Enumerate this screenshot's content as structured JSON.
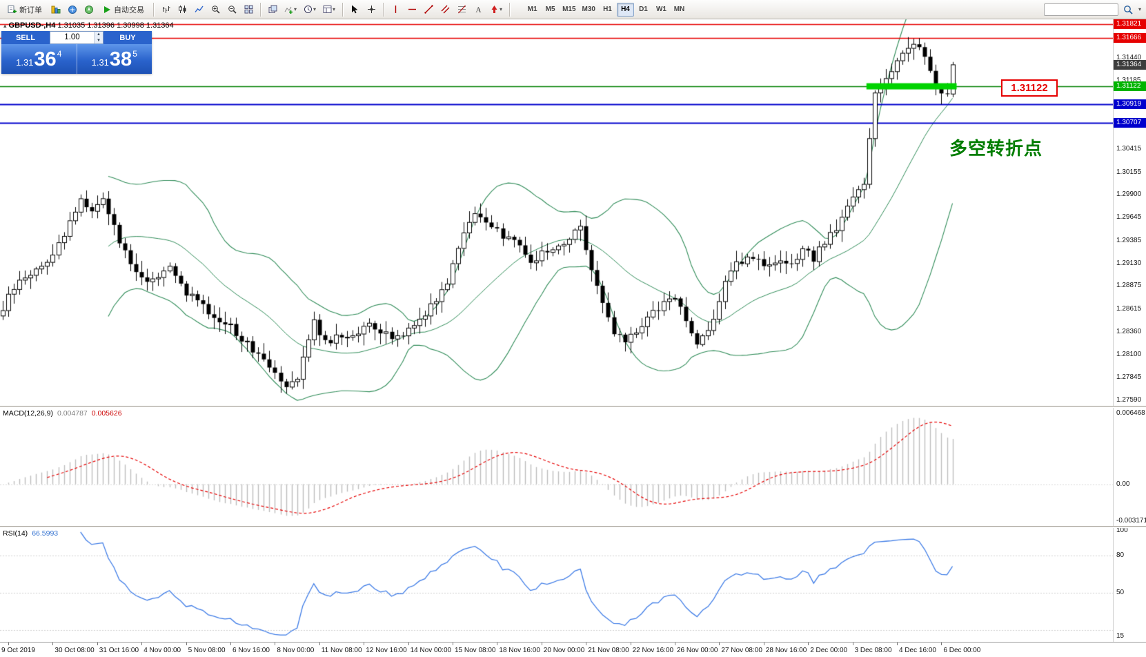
{
  "toolbar": {
    "new_order_label": "新订单",
    "autotrade_label": "自动交易",
    "timeframes": [
      "M1",
      "M5",
      "M15",
      "M30",
      "H1",
      "H4",
      "D1",
      "W1",
      "MN"
    ],
    "active_timeframe": "H4",
    "search_value": ""
  },
  "trade_panel": {
    "sell_label": "SELL",
    "buy_label": "BUY",
    "volume": "1.00",
    "sell_price": {
      "base": "1.31",
      "pips": "36",
      "sup": "4"
    },
    "buy_price": {
      "base": "1.31",
      "pips": "38",
      "sup": "5"
    }
  },
  "chart": {
    "title": "GBPUSD-,H4",
    "ohlc_text": "1.31035 1.31396 1.30998 1.31364",
    "annotation_text": "多空转折点",
    "level_label_text": "1.31122"
  },
  "chart_data": {
    "type": "candlestick",
    "symbol": "GBPUSD-",
    "timeframe": "H4",
    "current_bar": {
      "open": 1.31035,
      "high": 1.31396,
      "low": 1.30998,
      "close": 1.31364
    },
    "num_bars": 172,
    "bar_spacing_px": 8.05,
    "price_axis": {
      "max": 1.31821,
      "min": 1.2759,
      "plain_labels": [
        "1.31440",
        "1.31185",
        "1.30415",
        "1.30155",
        "1.29900",
        "1.29645",
        "1.29385",
        "1.29130",
        "1.28875",
        "1.28615",
        "1.28360",
        "1.28100",
        "1.27845",
        "1.27590"
      ]
    },
    "levels": [
      {
        "price": 1.31821,
        "line_color": "#e60000",
        "line_width": 1.6,
        "badge_color": "#e60000",
        "label": "1.31821"
      },
      {
        "price": 1.31666,
        "line_color": "#e60000",
        "line_width": 1.6,
        "badge_color": "#e60000",
        "label": "1.31666"
      },
      {
        "price": 1.31364,
        "line_color": null,
        "line_width": 0,
        "badge_color": "#3d3d3d",
        "label": "1.31364"
      },
      {
        "price": 1.31122,
        "line_color": "#008000",
        "line_width": 1.5,
        "badge_color": "#00b400",
        "label": "1.31122"
      },
      {
        "price": 1.30919,
        "line_color": "#0000cd",
        "line_width": 1.8,
        "badge_color": "#0000cd",
        "label": "1.30919"
      },
      {
        "price": 1.30707,
        "line_color": "#0000cd",
        "line_width": 1.8,
        "badge_color": "#0000cd",
        "label": "1.30707"
      }
    ],
    "highlight_segment": {
      "price": 1.31122,
      "from_bar": 156,
      "to_bar": 171,
      "color": "#00d300",
      "thickness": 9
    },
    "bollinger": {
      "period": 20,
      "deviation": 2,
      "color": "#2e8b57"
    },
    "candle_colors": {
      "up_fill": "#ffffff",
      "down_fill": "#000000",
      "outline": "#000000"
    },
    "close_path_anchors": [
      [
        0,
        1.2862
      ],
      [
        2,
        1.2886
      ],
      [
        5,
        1.2902
      ],
      [
        8,
        1.2914
      ],
      [
        11,
        1.2946
      ],
      [
        14,
        1.2986
      ],
      [
        16,
        1.2972
      ],
      [
        18,
        1.2988
      ],
      [
        20,
        1.2952
      ],
      [
        24,
        1.2901
      ],
      [
        27,
        1.2893
      ],
      [
        30,
        1.2907
      ],
      [
        33,
        1.2881
      ],
      [
        36,
        1.2863
      ],
      [
        38,
        1.2853
      ],
      [
        41,
        1.2843
      ],
      [
        43,
        1.2827
      ],
      [
        47,
        1.2807
      ],
      [
        51,
        1.2777
      ],
      [
        53,
        1.2787
      ],
      [
        56,
        1.2847
      ],
      [
        58,
        1.2825
      ],
      [
        62,
        1.2832
      ],
      [
        66,
        1.2842
      ],
      [
        70,
        1.2829
      ],
      [
        73,
        1.2839
      ],
      [
        76,
        1.2857
      ],
      [
        80,
        1.2892
      ],
      [
        83,
        1.2951
      ],
      [
        85,
        1.2969
      ],
      [
        88,
        1.2951
      ],
      [
        92,
        1.2939
      ],
      [
        95,
        1.2917
      ],
      [
        98,
        1.2926
      ],
      [
        100,
        1.2932
      ],
      [
        102,
        1.2941
      ],
      [
        104,
        1.2957
      ],
      [
        106,
        1.2907
      ],
      [
        108,
        1.2867
      ],
      [
        110,
        1.2832
      ],
      [
        112,
        1.2826
      ],
      [
        115,
        1.2844
      ],
      [
        117,
        1.2857
      ],
      [
        119,
        1.2867
      ],
      [
        121,
        1.2877
      ],
      [
        123,
        1.2847
      ],
      [
        125,
        1.2821
      ],
      [
        128,
        1.2852
      ],
      [
        130,
        1.2889
      ],
      [
        132,
        1.2912
      ],
      [
        135,
        1.2922
      ],
      [
        138,
        1.2907
      ],
      [
        140,
        1.2913
      ],
      [
        142,
        1.2909
      ],
      [
        144,
        1.2927
      ],
      [
        146,
        1.2919
      ],
      [
        148,
        1.2937
      ],
      [
        151,
        1.2962
      ],
      [
        153,
        1.2987
      ],
      [
        155,
        1.3003
      ],
      [
        157,
        1.3106
      ],
      [
        159,
        1.3123
      ],
      [
        160,
        1.3132
      ],
      [
        162,
        1.3149
      ],
      [
        164,
        1.316
      ],
      [
        165,
        1.3158
      ],
      [
        166,
        1.3149
      ],
      [
        167,
        1.3126
      ],
      [
        168,
        1.3111
      ],
      [
        169,
        1.3101
      ],
      [
        170,
        1.31035
      ],
      [
        171,
        1.31364
      ]
    ],
    "macd": {
      "label": "MACD(12,26,9)",
      "value_main": "0.004787",
      "value_signal": "0.005626",
      "hist_color": "#bdbdbd",
      "signal_color": "#e60000",
      "scale_labels": {
        "max": "0.006468",
        "zero": "0.00",
        "min": "-0.003171"
      }
    },
    "rsi": {
      "label": "RSI(14)",
      "value": "66.5993",
      "line_color": "#3d7be6",
      "scale_min": 15,
      "scale_max": 100,
      "scale_labels": [
        {
          "v": 100,
          "t": "100"
        },
        {
          "v": 80,
          "t": "80"
        },
        {
          "v": 50,
          "t": "50"
        },
        {
          "v": 15,
          "t": "15"
        }
      ],
      "level_lines": [
        80,
        50,
        20
      ]
    },
    "time_labels": [
      "9 Oct 2019",
      "30 Oct 08:00",
      "31 Oct 16:00",
      "4 Nov 00:00",
      "5 Nov 08:00",
      "6 Nov 16:00",
      "8 Nov 00:00",
      "11 Nov 08:00",
      "12 Nov 16:00",
      "14 Nov 00:00",
      "15 Nov 08:00",
      "18 Nov 16:00",
      "20 Nov 00:00",
      "21 Nov 08:00",
      "22 Nov 16:00",
      "26 Nov 00:00",
      "27 Nov 08:00",
      "28 Nov 16:00",
      "2 Dec 00:00",
      "3 Dec 08:00",
      "4 Dec 16:00",
      "6 Dec 00:00"
    ]
  }
}
